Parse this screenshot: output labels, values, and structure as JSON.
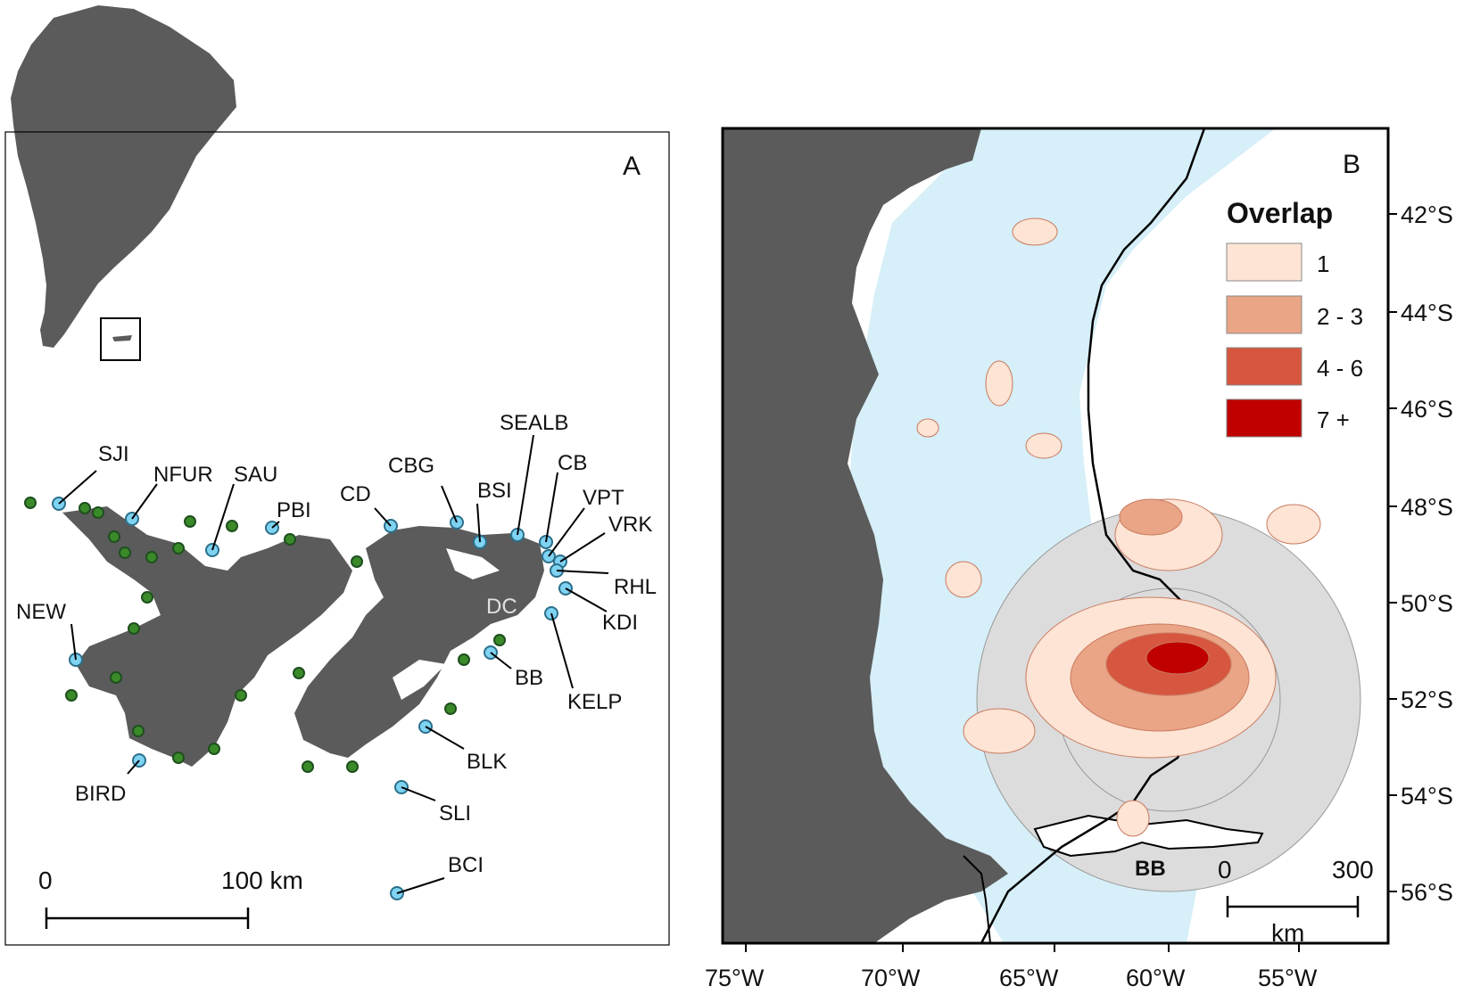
{
  "panel_a": {
    "letter": "A",
    "site_labels": [
      {
        "code": "SJI"
      },
      {
        "code": "NFUR"
      },
      {
        "code": "SAU"
      },
      {
        "code": "PBI"
      },
      {
        "code": "CD"
      },
      {
        "code": "CBG"
      },
      {
        "code": "BSI"
      },
      {
        "code": "SEALB"
      },
      {
        "code": "CB"
      },
      {
        "code": "VPT"
      },
      {
        "code": "VRK"
      },
      {
        "code": "RHL"
      },
      {
        "code": "KDI"
      },
      {
        "code": "KELP"
      },
      {
        "code": "BB"
      },
      {
        "code": "BLK"
      },
      {
        "code": "SLI"
      },
      {
        "code": "BCI"
      },
      {
        "code": "BIRD"
      },
      {
        "code": "NEW"
      }
    ],
    "place_label": "DC",
    "scale": {
      "start": "0",
      "end": "100 km"
    }
  },
  "panel_b": {
    "letter": "B",
    "legend": {
      "title": "Overlap",
      "items": [
        {
          "label": "1",
          "color": "#fde4d4"
        },
        {
          "label": "2 - 3",
          "color": "#e9a585"
        },
        {
          "label": "4 - 6",
          "color": "#d7563f"
        },
        {
          "label": "7 +",
          "color": "#c00000"
        }
      ]
    },
    "place_label": "BB",
    "scale": {
      "start": "0",
      "end": "300",
      "unit": "km"
    },
    "lat_ticks": [
      "42°S",
      "44°S",
      "46°S",
      "48°S",
      "50°S",
      "52°S",
      "54°S",
      "56°S"
    ],
    "lon_ticks": [
      "75°W",
      "70°W",
      "65°W",
      "60°W",
      "55°W"
    ]
  },
  "colors": {
    "land": "#5b5b5b",
    "shelf": "#d6eff8",
    "buffer": "#dcdcdc",
    "site_blue": "#7fd3f2",
    "site_green": "#3a8a2a"
  }
}
